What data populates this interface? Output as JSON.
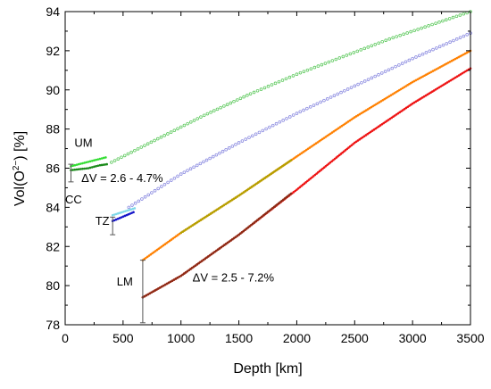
{
  "chart_data": {
    "type": "scatter",
    "xlabel": "Depth [km]",
    "ylabel_parts": {
      "main": "Vol(O",
      "sup": "2−",
      "tail": ") [%]"
    },
    "xlim": [
      0,
      3500
    ],
    "ylim": [
      78,
      94
    ],
    "x_ticks": [
      0,
      500,
      1000,
      1500,
      2000,
      2500,
      3000,
      3500
    ],
    "y_ticks": [
      78,
      80,
      82,
      84,
      86,
      88,
      90,
      92,
      94
    ],
    "x_tick_labels": [
      "0",
      "500",
      "1000",
      "1500",
      "2000",
      "2500",
      "3000",
      "3500"
    ],
    "y_tick_labels": [
      "78",
      "80",
      "82",
      "84",
      "86",
      "88",
      "90",
      "92",
      "94"
    ],
    "grid": false,
    "series": [
      {
        "points": [
          [
            400,
            86.3
          ],
          [
            800,
            87.5
          ],
          [
            1200,
            88.7
          ],
          [
            1600,
            89.8
          ],
          [
            2000,
            90.8
          ],
          [
            2400,
            91.7
          ],
          [
            2800,
            92.6
          ],
          [
            3200,
            93.4
          ],
          [
            3500,
            94.0
          ]
        ],
        "color": "#5cc85c",
        "marker": "open-circle"
      },
      {
        "points": [
          [
            550,
            84.0
          ],
          [
            1000,
            85.7
          ],
          [
            1500,
            87.3
          ],
          [
            2000,
            88.8
          ],
          [
            2500,
            90.2
          ],
          [
            3000,
            91.6
          ],
          [
            3500,
            92.9
          ]
        ],
        "color": "#8a8ae0",
        "marker": "open-circle"
      },
      {
        "points": [
          [
            670,
            81.3
          ],
          [
            1000,
            82.7
          ],
          [
            1500,
            84.6
          ],
          [
            2000,
            86.6
          ],
          [
            2500,
            88.6
          ],
          [
            3000,
            90.4
          ],
          [
            3500,
            92.0
          ]
        ],
        "color": "#ff8000",
        "marker": "dot"
      },
      {
        "points": [
          [
            670,
            79.4
          ],
          [
            1000,
            80.5
          ],
          [
            1500,
            82.6
          ],
          [
            2000,
            84.9
          ],
          [
            2500,
            87.3
          ],
          [
            3000,
            89.3
          ],
          [
            3500,
            91.1
          ]
        ],
        "color": "#ee1111",
        "marker": "dot"
      },
      {
        "points": [
          [
            1000,
            82.7
          ],
          [
            1500,
            84.6
          ],
          [
            1950,
            86.4
          ]
        ],
        "color": "#b4a000",
        "marker": "dot"
      },
      {
        "points": [
          [
            670,
            79.4
          ],
          [
            1000,
            80.5
          ],
          [
            1500,
            82.6
          ],
          [
            1950,
            84.7
          ]
        ],
        "color": "#8b2a14",
        "marker": "dot"
      },
      {
        "points": [
          [
            50,
            85.9
          ],
          [
            200,
            86.0
          ],
          [
            300,
            86.15
          ],
          [
            360,
            86.2
          ]
        ],
        "color": "#1a8a1a",
        "marker": "dot"
      },
      {
        "points": [
          [
            50,
            86.1
          ],
          [
            150,
            86.25
          ],
          [
            250,
            86.4
          ],
          [
            350,
            86.55
          ]
        ],
        "color": "#33dd33",
        "marker": "dot"
      },
      {
        "points": [
          [
            410,
            83.6
          ],
          [
            600,
            83.95
          ]
        ],
        "color": "#7fd8e8",
        "marker": "dot"
      },
      {
        "points": [
          [
            410,
            83.3
          ],
          [
            590,
            83.75
          ]
        ],
        "color": "#1414c8",
        "marker": "dot"
      }
    ],
    "error_bars": [
      {
        "x": 50,
        "low": 85.3,
        "high": 86.2
      },
      {
        "x": 410,
        "low": 82.6,
        "high": 83.5
      },
      {
        "x": 670,
        "low": 78.1,
        "high": 81.3
      }
    ],
    "annotations": [
      {
        "text": "UM",
        "x": 80,
        "y": 87.1
      },
      {
        "text": "ΔV = 2.6 - 4.7%",
        "x": 140,
        "y": 85.3
      },
      {
        "text": "CC",
        "x": 0,
        "y": 84.2
      },
      {
        "text": "TZ",
        "x": 260,
        "y": 83.1
      },
      {
        "text": "LM",
        "x": 445,
        "y": 80.0
      },
      {
        "text": "ΔV = 2.5 - 7.2%",
        "x": 1100,
        "y": 80.2
      }
    ]
  }
}
